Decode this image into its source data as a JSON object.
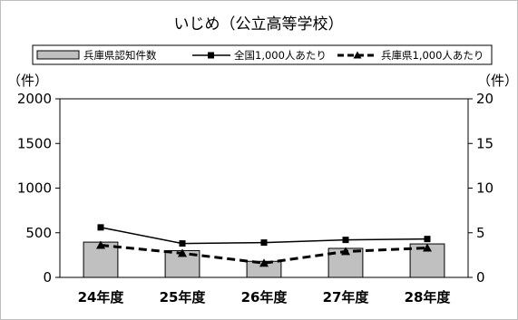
{
  "chart_data": {
    "type": "bar",
    "title": "いじめ（公立高等学校）",
    "categories": [
      "24年度",
      "25年度",
      "26年度",
      "27年度",
      "28年度"
    ],
    "y_left": {
      "label": "（件）",
      "ylim": [
        0,
        2000
      ],
      "ticks": [
        "0",
        "500",
        "1000",
        "1500",
        "2000"
      ]
    },
    "y_right": {
      "label": "（件）",
      "ylim": [
        0,
        20
      ],
      "ticks": [
        "0",
        "5",
        "10",
        "15",
        "20"
      ]
    },
    "series": [
      {
        "name": "兵庫県認知件数",
        "kind": "bar",
        "axis": "left",
        "values": [
          395,
          300,
          180,
          325,
          375
        ],
        "color": "#c0c0c0"
      },
      {
        "name": "全国1,000人あたり",
        "kind": "line",
        "axis": "right",
        "marker": "square",
        "style": "solid",
        "values": [
          5.6,
          3.8,
          3.9,
          4.2,
          4.3
        ],
        "color": "#000000"
      },
      {
        "name": "兵庫県1,000人あたり",
        "kind": "line",
        "axis": "right",
        "marker": "triangle",
        "style": "dashed",
        "values": [
          3.6,
          2.7,
          1.6,
          2.9,
          3.3
        ],
        "color": "#000000"
      }
    ],
    "legend": "top",
    "grid": false
  }
}
